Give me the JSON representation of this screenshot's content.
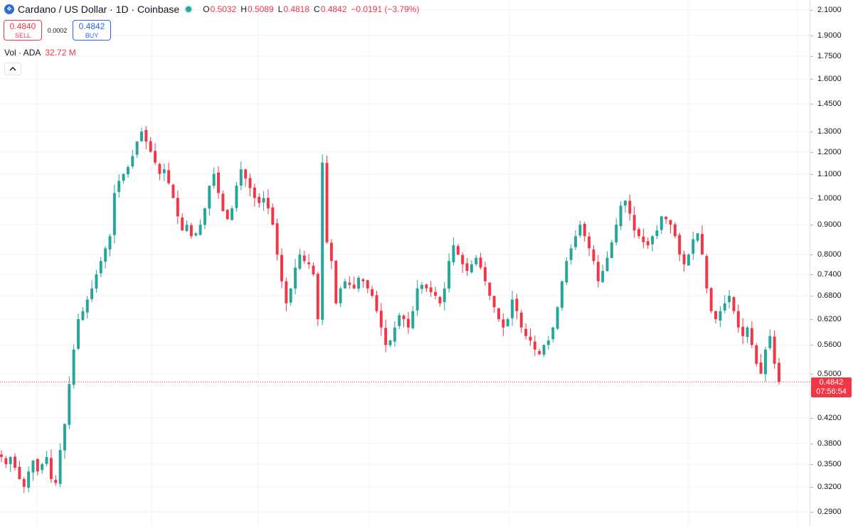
{
  "header": {
    "symbol_icon": "cardano-logo-icon",
    "title": "Cardano / US Dollar · 1D · Coinbase",
    "ohlc": [
      {
        "label": "O",
        "value": "0.5032"
      },
      {
        "label": "H",
        "value": "0.5089"
      },
      {
        "label": "L",
        "value": "0.4818"
      },
      {
        "label": "C",
        "value": "0.4842"
      }
    ],
    "change": "−0.0191 (−3.79%)"
  },
  "trade": {
    "sell_price": "0.4840",
    "sell_label": "SELL",
    "spread": "0.0002",
    "buy_price": "0.4842",
    "buy_label": "BUY"
  },
  "volume": {
    "label": "Vol · ADA",
    "value": "32.72 M"
  },
  "price_tag": {
    "value": "0.4842",
    "countdown": "07:56:54"
  },
  "colors": {
    "up": "#26a69a",
    "down": "#f23645",
    "grid": "#f0f3fa",
    "axis_text": "#131722",
    "buy": "#2962ff"
  },
  "chart_data": {
    "type": "candlestick",
    "title": "Cardano / US Dollar · 1D · Coinbase",
    "y_scale": "log",
    "ylim": [
      0.28,
      2.15
    ],
    "y_ticks": [
      "2.1000",
      "1.9000",
      "1.7500",
      "1.6000",
      "1.4500",
      "1.3000",
      "1.2000",
      "1.1000",
      "1.0000",
      "0.9000",
      "0.8000",
      "0.7400",
      "0.6800",
      "0.6200",
      "0.5600",
      "0.5000",
      "0.4200",
      "0.3800",
      "0.3500",
      "0.3200",
      "0.2900"
    ],
    "grid": true,
    "last_close": 0.4842,
    "series_close_estimated": [
      0.36,
      0.35,
      0.36,
      0.345,
      0.33,
      0.32,
      0.34,
      0.355,
      0.34,
      0.35,
      0.36,
      0.33,
      0.325,
      0.37,
      0.41,
      0.48,
      0.55,
      0.62,
      0.64,
      0.67,
      0.7,
      0.74,
      0.78,
      0.82,
      0.86,
      1.02,
      1.07,
      1.1,
      1.13,
      1.18,
      1.25,
      1.3,
      1.25,
      1.2,
      1.15,
      1.1,
      1.12,
      1.06,
      1.0,
      0.93,
      0.88,
      0.9,
      0.86,
      0.87,
      0.9,
      0.96,
      1.05,
      1.1,
      1.02,
      0.95,
      0.92,
      0.96,
      1.05,
      1.12,
      1.08,
      1.04,
      1.0,
      0.98,
      1.0,
      0.96,
      0.9,
      0.8,
      0.72,
      0.66,
      0.7,
      0.76,
      0.8,
      0.78,
      0.77,
      0.74,
      0.62,
      1.15,
      0.84,
      0.78,
      0.66,
      0.7,
      0.72,
      0.71,
      0.7,
      0.73,
      0.72,
      0.7,
      0.68,
      0.64,
      0.6,
      0.56,
      0.57,
      0.6,
      0.63,
      0.62,
      0.6,
      0.64,
      0.7,
      0.71,
      0.7,
      0.69,
      0.68,
      0.66,
      0.7,
      0.78,
      0.83,
      0.8,
      0.77,
      0.75,
      0.77,
      0.79,
      0.76,
      0.72,
      0.68,
      0.65,
      0.62,
      0.6,
      0.62,
      0.67,
      0.64,
      0.6,
      0.58,
      0.57,
      0.55,
      0.54,
      0.56,
      0.57,
      0.6,
      0.65,
      0.72,
      0.78,
      0.82,
      0.86,
      0.9,
      0.86,
      0.82,
      0.78,
      0.72,
      0.75,
      0.79,
      0.84,
      0.9,
      0.97,
      0.99,
      0.94,
      0.88,
      0.86,
      0.84,
      0.83,
      0.86,
      0.88,
      0.93,
      0.92,
      0.9,
      0.86,
      0.8,
      0.77,
      0.8,
      0.85,
      0.87,
      0.8,
      0.7,
      0.64,
      0.62,
      0.64,
      0.66,
      0.68,
      0.64,
      0.6,
      0.58,
      0.6,
      0.56,
      0.52,
      0.5,
      0.55,
      0.58,
      0.52,
      0.484
    ]
  }
}
